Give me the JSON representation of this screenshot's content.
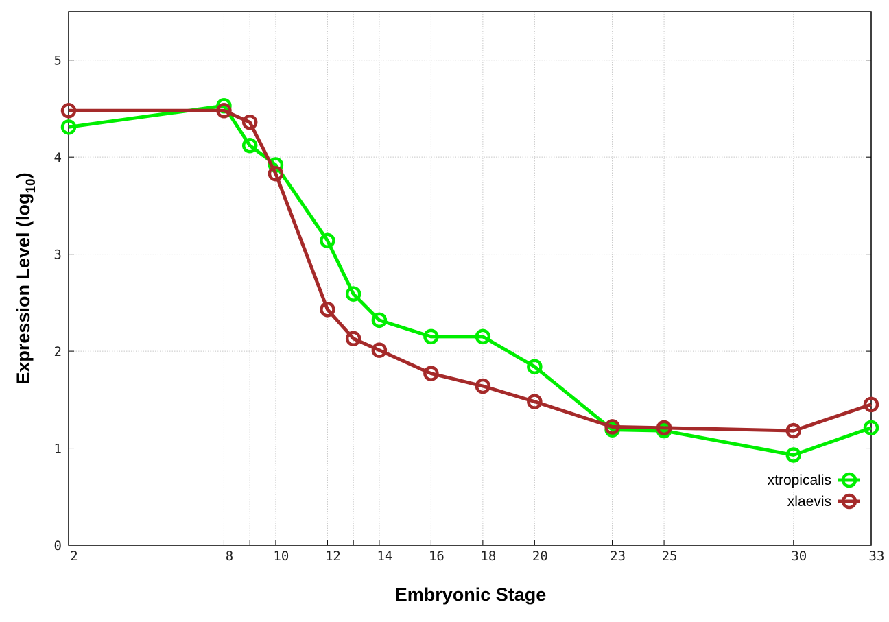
{
  "chart_data": {
    "type": "line",
    "title": "",
    "xlabel": "Embryonic Stage",
    "ylabel": "Expression Level (log",
    "ylabel_subscript": "10",
    "ylabel_close": ")",
    "x": [
      2,
      8,
      9,
      10,
      12,
      13,
      14,
      16,
      18,
      20,
      23,
      25,
      30,
      33
    ],
    "xticks": [
      2,
      8,
      10,
      12,
      14,
      16,
      18,
      20,
      23,
      25,
      30,
      33
    ],
    "yticks": [
      0,
      1,
      2,
      3,
      4,
      5
    ],
    "xlim": [
      2,
      33
    ],
    "ylim": [
      0,
      5.5
    ],
    "grid": true,
    "legend_position": "bottom-right",
    "series": [
      {
        "name": "xtropicalis",
        "color": "#00ee00",
        "values": [
          4.31,
          4.53,
          4.12,
          3.92,
          3.14,
          2.59,
          2.32,
          2.15,
          2.15,
          1.84,
          1.19,
          1.18,
          0.93,
          1.21
        ]
      },
      {
        "name": "xlaevis",
        "color": "#a52a2a",
        "values": [
          4.48,
          4.48,
          4.36,
          3.83,
          2.43,
          2.13,
          2.01,
          1.77,
          1.64,
          1.48,
          1.22,
          1.21,
          1.18,
          1.45
        ]
      }
    ]
  }
}
